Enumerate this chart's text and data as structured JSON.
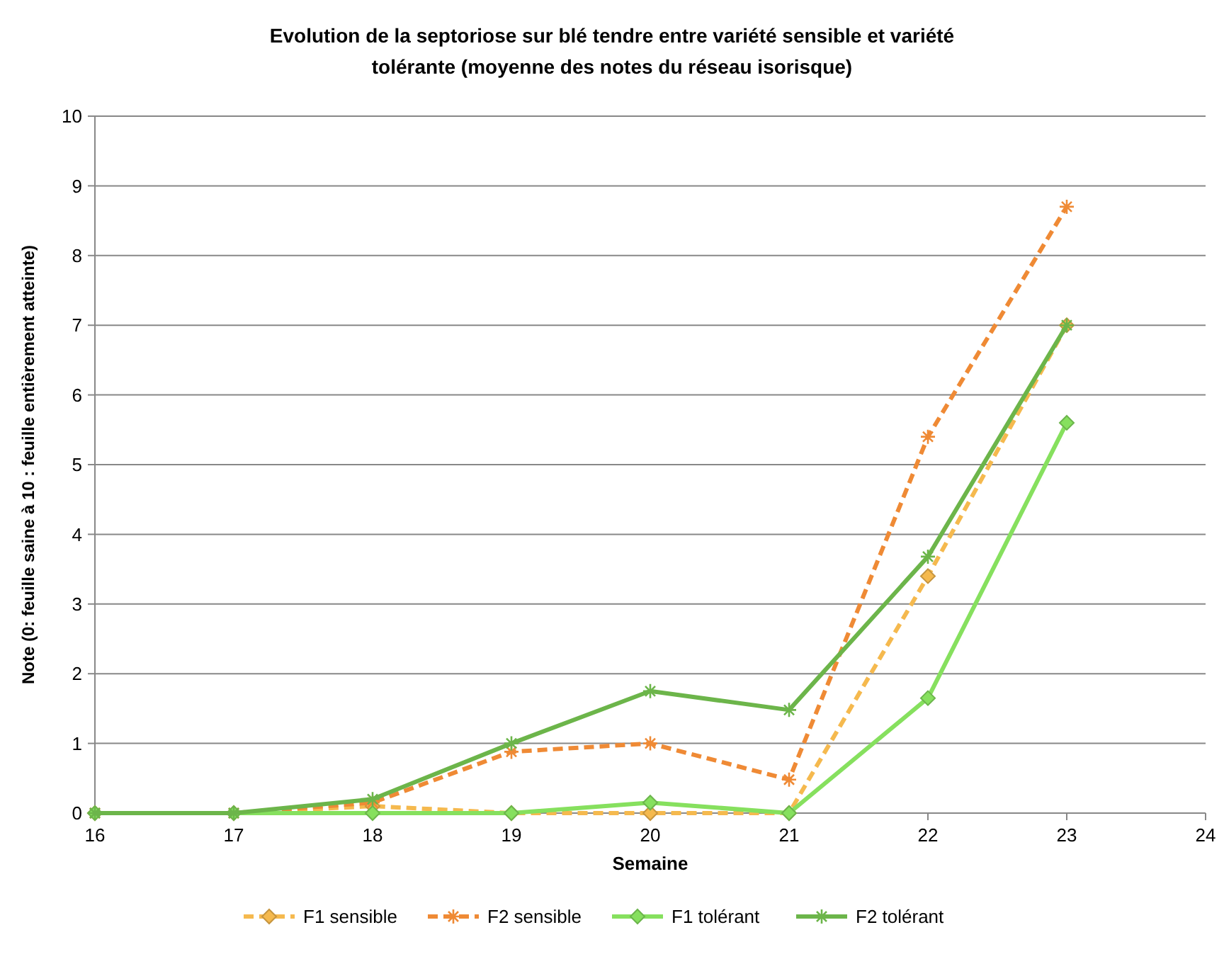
{
  "chart_data": {
    "type": "line",
    "title": "Evolution de la septoriose sur blé tendre entre variété sensible et variété tolérante (moyenne des notes du réseau isorisque)",
    "xlabel": "Semaine",
    "ylabel": "Note (0: feuille saine à 10 : feuille entièrement atteinte)",
    "x": [
      16,
      17,
      18,
      19,
      20,
      21,
      22,
      23
    ],
    "xlim": [
      16,
      24
    ],
    "xticks": [
      16,
      17,
      18,
      19,
      20,
      21,
      22,
      23,
      24
    ],
    "ylim": [
      0,
      10
    ],
    "yticks": [
      0,
      1,
      2,
      3,
      4,
      5,
      6,
      7,
      8,
      9,
      10
    ],
    "grid": "y",
    "legend": "bottom",
    "series": [
      {
        "name": "F1 sensible",
        "color": "#f5b94e",
        "values": [
          0,
          0,
          0.1,
          0,
          0,
          0,
          3.4,
          7.0
        ],
        "marker": "diamond",
        "line_style": "dashed"
      },
      {
        "name": "F2 sensible",
        "color": "#ef8a35",
        "values": [
          0,
          0,
          0.15,
          0.88,
          1.0,
          0.48,
          5.4,
          8.7
        ],
        "marker": "cross",
        "line_style": "dashed"
      },
      {
        "name": "F1 tolérant",
        "color": "#86e05e",
        "values": [
          0,
          0,
          0,
          0,
          0.15,
          0,
          1.65,
          5.6
        ],
        "marker": "diamond",
        "line_style": "solid"
      },
      {
        "name": "F2 tolérant",
        "color": "#6cb54a",
        "values": [
          0,
          0,
          0.2,
          1.0,
          1.75,
          1.48,
          3.68,
          7.0
        ],
        "marker": "cross",
        "line_style": "solid"
      }
    ]
  }
}
